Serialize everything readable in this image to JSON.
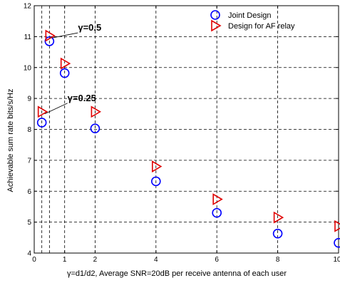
{
  "chart_data": {
    "type": "scatter",
    "xlabel": "γ=d1/d2, Average SNR=20dB per receive antenna of each user",
    "ylabel": "Achievable sum rate bits/s/Hz",
    "xlim": [
      0,
      10
    ],
    "ylim": [
      4,
      12
    ],
    "xticks": [
      0,
      1,
      2,
      4,
      6,
      8,
      10
    ],
    "yticks": [
      4,
      5,
      6,
      7,
      8,
      9,
      10,
      11,
      12
    ],
    "x_gridlines": [
      0.25,
      0.5,
      1,
      2,
      4,
      6,
      8
    ],
    "grid": true,
    "legend_position": "top-right",
    "series": [
      {
        "name": "Joint Design",
        "marker": "circle",
        "color": "#0000ff",
        "points": [
          [
            0.25,
            8.22
          ],
          [
            0.5,
            10.85
          ],
          [
            1,
            9.82
          ],
          [
            2,
            8.03
          ],
          [
            4,
            6.32
          ],
          [
            6,
            5.3
          ],
          [
            8,
            4.63
          ],
          [
            10,
            4.33
          ]
        ]
      },
      {
        "name": "Design for AF relay",
        "marker": "triangle-right",
        "color": "#e00000",
        "points": [
          [
            0.25,
            8.57
          ],
          [
            0.5,
            11.03
          ],
          [
            1,
            10.13
          ],
          [
            2,
            8.57
          ],
          [
            4,
            6.8
          ],
          [
            6,
            5.74
          ],
          [
            8,
            5.15
          ],
          [
            10,
            4.87
          ]
        ]
      }
    ],
    "annotations": [
      {
        "text": "γ=0.5",
        "x": 0.5,
        "y": 11.03
      },
      {
        "text": "γ=0.25",
        "x": 0.25,
        "y": 8.57
      }
    ]
  }
}
